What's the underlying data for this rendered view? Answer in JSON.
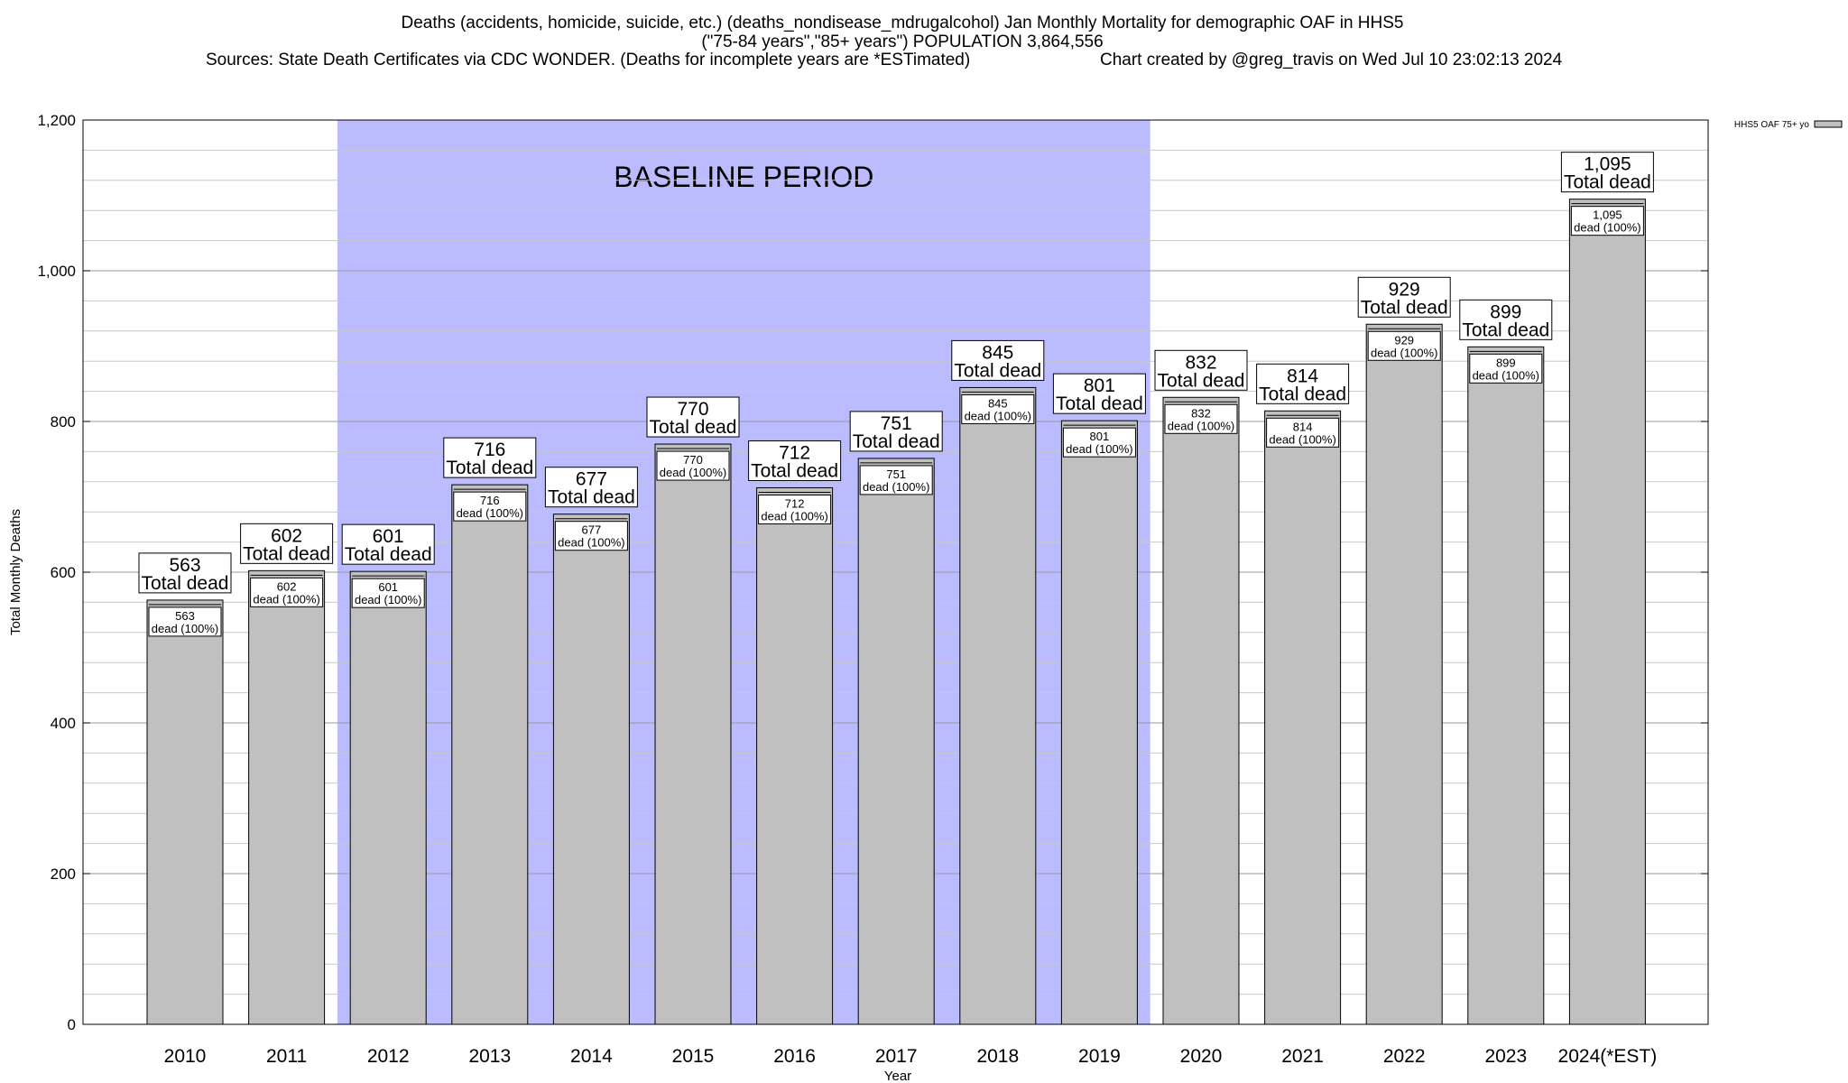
{
  "chart_data": {
    "type": "bar",
    "title_lines": [
      "Deaths (accidents, homicide, suicide, etc.) (deaths_nondisease_mdrugalcohol) Jan Monthly Mortality for demographic OAF in HHS5",
      "(\"75-84 years\",\"85+ years\") POPULATION 3,864,556"
    ],
    "sources": "Sources: State Death Certificates via CDC WONDER. (Deaths for incomplete years are *ESTimated)",
    "credit": "Chart created by @greg_travis on Wed Jul 10 23:02:13 2024",
    "xlabel": "Year",
    "ylabel": "Total Monthly Deaths",
    "ylim": [
      0,
      1200
    ],
    "y_ticks": [
      {
        "value": 0,
        "label": "0"
      },
      {
        "value": 200,
        "label": "200"
      },
      {
        "value": 400,
        "label": "400"
      },
      {
        "value": 600,
        "label": "600"
      },
      {
        "value": 800,
        "label": "800"
      },
      {
        "value": 1000,
        "label": "1,000"
      },
      {
        "value": 1200,
        "label": "1,200"
      }
    ],
    "minor_step": 40,
    "grid": true,
    "baseline": {
      "label": "BASELINE PERIOD",
      "from": "2012",
      "to": "2019",
      "color": "#bbbbff"
    },
    "legend": {
      "label": "HHS5 OAF 75+ yo",
      "position": "top-right",
      "color": "#c0c0c0"
    },
    "bar_color": "#c0c0c0",
    "total_suffix": "Total dead",
    "inner_suffix": "dead (100%)",
    "categories": [
      "2010",
      "2011",
      "2012",
      "2013",
      "2014",
      "2015",
      "2016",
      "2017",
      "2018",
      "2019",
      "2020",
      "2021",
      "2022",
      "2023",
      "2024(*EST)"
    ],
    "values": [
      563,
      602,
      601,
      716,
      677,
      770,
      712,
      751,
      845,
      801,
      832,
      814,
      929,
      899,
      1095
    ],
    "value_labels": [
      "563",
      "602",
      "601",
      "716",
      "677",
      "770",
      "712",
      "751",
      "845",
      "801",
      "832",
      "814",
      "929",
      "899",
      "1,095"
    ]
  }
}
